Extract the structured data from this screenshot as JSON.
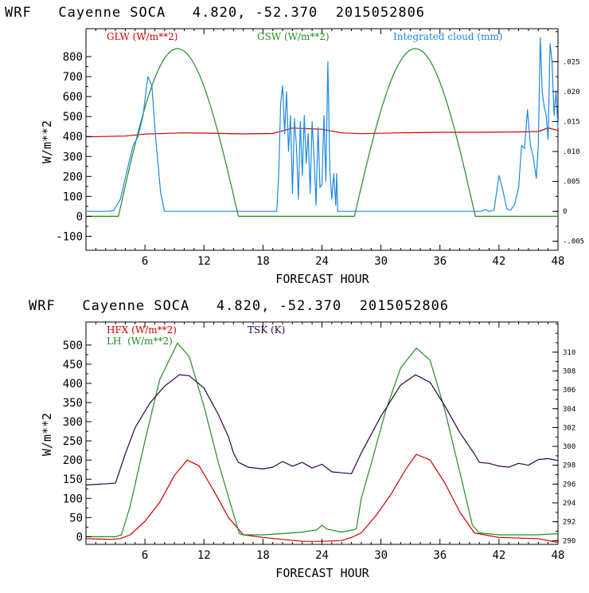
{
  "chart_data": [
    {
      "type": "line",
      "title": "WRF   Cayenne SOCA   4.820, -52.370  2015052806",
      "xlabel": "FORECAST HOUR",
      "ylabel": "W/m**2",
      "xlim": [
        0,
        48
      ],
      "ylim": [
        -170,
        940
      ],
      "x_ticks": [
        6,
        12,
        18,
        24,
        30,
        36,
        42,
        48
      ],
      "y_ticks": [
        -100,
        0,
        100,
        200,
        300,
        400,
        500,
        600,
        700,
        800
      ],
      "right_axis": {
        "label": "Integrated cloud (mm)",
        "range": [
          -0.0065,
          0.0305
        ],
        "ticks": [
          -0.005,
          0,
          0.005,
          0.01,
          0.015,
          0.02,
          0.025
        ],
        "tick_labels": [
          "-.005",
          "0",
          ".005",
          ".010",
          ".015",
          ".020",
          ".025"
        ]
      },
      "legend": [
        "GLW (W/m**2)",
        "GSW (W/m**2)",
        "Integrated cloud (mm)"
      ],
      "series": [
        {
          "name": "GLW (W/m**2)",
          "color": "#cc0000",
          "axis": "left",
          "x": [
            0,
            4,
            6,
            10,
            12,
            16,
            19,
            21,
            24,
            26,
            28,
            32,
            36,
            40,
            44,
            46,
            47,
            48
          ],
          "y": [
            398,
            402,
            412,
            418,
            417,
            413,
            415,
            442,
            436,
            418,
            414,
            418,
            421,
            421,
            423,
            425,
            443,
            430
          ]
        },
        {
          "name": "GSW (W/m**2)",
          "color": "#228b22",
          "axis": "left",
          "shape": "diurnal",
          "days": [
            {
              "start": 3.3,
              "peak": 9.3,
              "end": 15.5,
              "max": 840
            },
            {
              "start": 27.3,
              "peak": 33.5,
              "end": 39.6,
              "max": 840
            }
          ]
        },
        {
          "name": "Integrated cloud (mm)",
          "color": "#1e88e5",
          "axis": "right",
          "x": [
            0,
            1.8,
            2.8,
            3.5,
            4.2,
            4.8,
            5.3,
            5.8,
            6.3,
            6.7,
            7.1,
            7.6,
            8,
            8.5,
            19.4,
            19.6,
            19.8,
            20,
            20.2,
            20.4,
            20.6,
            20.8,
            21,
            21.2,
            21.4,
            21.6,
            21.8,
            22,
            22.2,
            22.4,
            22.6,
            22.8,
            23,
            23.2,
            23.4,
            23.6,
            23.8,
            24,
            24.2,
            24.4,
            24.6,
            24.8,
            25,
            25.2,
            25.4,
            25.5,
            25.6,
            26,
            40.2,
            40.6,
            41,
            41.5,
            42,
            42.4,
            42.8,
            43.2,
            43.6,
            44,
            44.3,
            44.6,
            44.9,
            45.2,
            45.5,
            45.8,
            46,
            46.2,
            46.4,
            46.6,
            46.8,
            47,
            47.2,
            47.4,
            47.6,
            47.8,
            48
          ],
          "y": [
            0,
            0,
            0.0001,
            0.002,
            0.007,
            0.011,
            0.0125,
            0.016,
            0.0225,
            0.021,
            0.012,
            0.003,
            0,
            0,
            0,
            0.006,
            0.018,
            0.021,
            0.013,
            0.02,
            0.01,
            0.016,
            0.003,
            0.0155,
            0.011,
            0.002,
            0.015,
            0.006,
            0.016,
            0.008,
            0.013,
            0.003,
            0.015,
            0.009,
            0.001,
            0.014,
            0.004,
            0.0045,
            0.016,
            0.005,
            0.025,
            0.007,
            0.002,
            0.0063,
            0.001,
            0.0063,
            0,
            0,
            0,
            0.0003,
            0,
            0.0002,
            0.006,
            0.0035,
            0.0004,
            0.0002,
            0.0012,
            0.004,
            0.011,
            0.0105,
            0.017,
            0.011,
            0.009,
            0.0055,
            0.011,
            0.029,
            0.02,
            0.0175,
            0.016,
            0.012,
            0.028,
            0.025,
            0.016,
            0.02,
            0.014
          ]
        }
      ]
    },
    {
      "type": "line",
      "title": "WRF   Cayenne SOCA   4.820, -52.370  2015052806",
      "xlabel": "FORECAST HOUR",
      "ylabel": "W/m**2",
      "xlim": [
        0,
        48
      ],
      "ylim": [
        -20,
        560
      ],
      "x_ticks": [
        6,
        12,
        18,
        24,
        30,
        36,
        42,
        48
      ],
      "y_ticks": [
        0,
        50,
        100,
        150,
        200,
        250,
        300,
        350,
        400,
        450,
        500
      ],
      "right_axis": {
        "label": "TSK (K)",
        "range": [
          289.6,
          313.2
        ],
        "ticks": [
          290,
          292,
          294,
          296,
          298,
          300,
          302,
          304,
          306,
          308,
          310
        ],
        "tick_labels": [
          "290",
          "292",
          "294",
          "296",
          "298",
          "300",
          "302",
          "304",
          "306",
          "308",
          "310"
        ]
      },
      "legend": [
        "HFX (W/m**2)",
        "LH  (W/m**2)",
        "TSK (K)"
      ],
      "series": [
        {
          "name": "HFX (W/m**2)",
          "color": "#cc0000",
          "axis": "left",
          "x": [
            0,
            2.5,
            3.5,
            4.5,
            6,
            7.5,
            9,
            10.3,
            11.5,
            13,
            14.5,
            16,
            18,
            22,
            24,
            26,
            27,
            28,
            29.5,
            31,
            32.5,
            33.6,
            35,
            36.5,
            38,
            39.5,
            42,
            46,
            48
          ],
          "y": [
            -5,
            -7,
            -5,
            5,
            40,
            90,
            160,
            200,
            185,
            120,
            50,
            5,
            -2,
            -12,
            -12,
            -10,
            -2,
            10,
            55,
            110,
            175,
            215,
            200,
            140,
            65,
            10,
            -2,
            -5,
            -15
          ]
        },
        {
          "name": "LH  (W/m**2)",
          "color": "#228b22",
          "axis": "left",
          "x": [
            0,
            3,
            3.6,
            4.5,
            6,
            7.5,
            9.3,
            10.5,
            12,
            13.5,
            15,
            15.6,
            16,
            18,
            20,
            22,
            23.5,
            24,
            24.5,
            26,
            27.5,
            28,
            29,
            30.5,
            32,
            33.6,
            35,
            36.5,
            38,
            39.3,
            40,
            42,
            46,
            48
          ],
          "y": [
            0,
            0,
            5,
            80,
            250,
            410,
            505,
            470,
            340,
            190,
            60,
            8,
            5,
            5,
            8,
            12,
            18,
            30,
            20,
            12,
            20,
            100,
            190,
            330,
            440,
            492,
            460,
            330,
            170,
            30,
            10,
            5,
            5,
            8
          ]
        },
        {
          "name": "TSK (K)",
          "color": "#330044",
          "axis": "right",
          "x": [
            0,
            3,
            4,
            5,
            6.5,
            8,
            9.5,
            10.5,
            12,
            13.5,
            14.5,
            15,
            15.5,
            16.5,
            18,
            19,
            20,
            21,
            22,
            23,
            24,
            25,
            26,
            27,
            28,
            30,
            32,
            33.5,
            35,
            36.5,
            38,
            39.5,
            40,
            41,
            42,
            43,
            44,
            45,
            46,
            47,
            48
          ],
          "y": [
            295.9,
            296.1,
            299.2,
            302.0,
            304.6,
            306.4,
            307.6,
            307.5,
            306.2,
            303.3,
            301.0,
            299.3,
            298.3,
            297.8,
            297.6,
            297.8,
            298.4,
            297.9,
            298.3,
            297.7,
            298.1,
            297.3,
            297.2,
            297.1,
            299.3,
            303.2,
            306.5,
            307.6,
            306.8,
            304.3,
            301.5,
            299.2,
            298.3,
            298.2,
            297.9,
            297.8,
            298.2,
            298.0,
            298.6,
            298.7,
            298.5
          ]
        }
      ]
    }
  ]
}
